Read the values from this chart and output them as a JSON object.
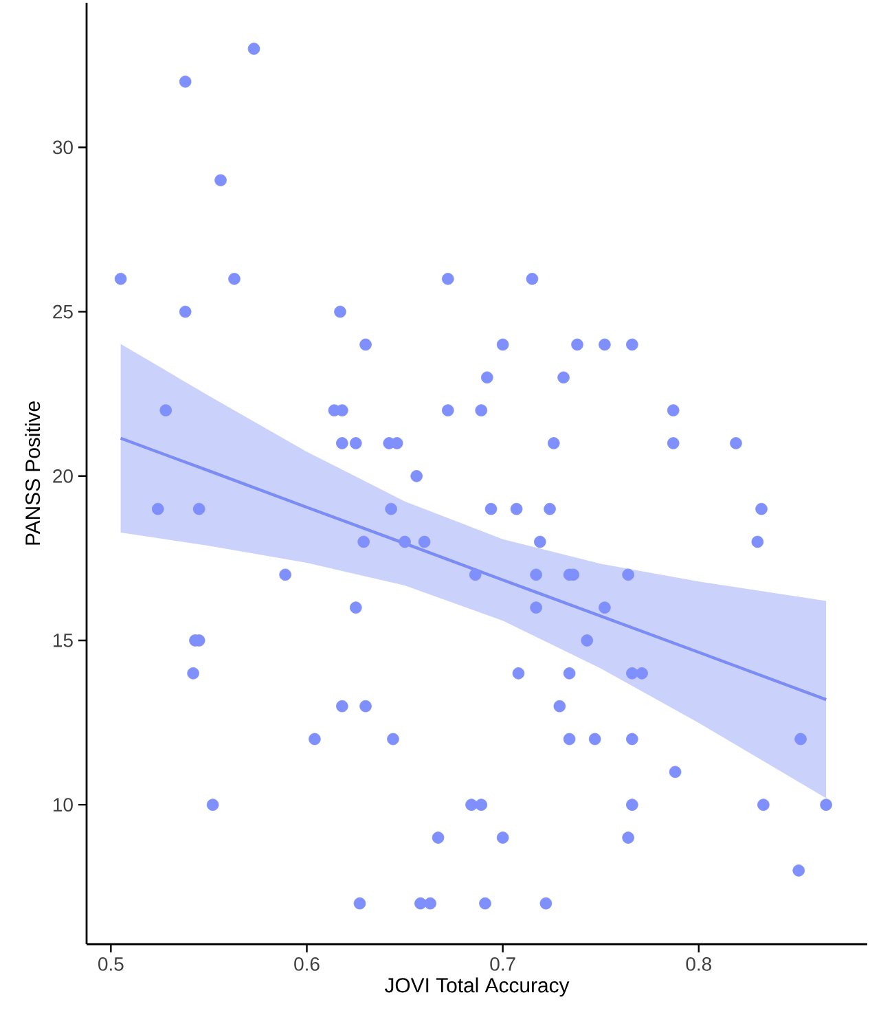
{
  "chart_data": {
    "type": "scatter",
    "xlabel": "JOVI Total Accuracy",
    "ylabel": "PANSS Positive",
    "xlim": [
      0.4876,
      0.886
    ],
    "ylim": [
      5.76,
      34.4
    ],
    "xticks": [
      0.5,
      0.6,
      0.7,
      0.8
    ],
    "yticks": [
      10,
      15,
      20,
      25,
      30
    ],
    "series": [
      {
        "color": "#7f8ffb",
        "marker": "circle",
        "x": [
          0.573,
          0.538,
          0.556,
          0.505,
          0.563,
          0.672,
          0.715,
          0.538,
          0.617,
          0.63,
          0.7,
          0.738,
          0.752,
          0.766,
          0.692,
          0.731,
          0.528,
          0.614,
          0.618,
          0.672,
          0.689,
          0.787,
          0.618,
          0.625,
          0.642,
          0.646,
          0.726,
          0.787,
          0.819,
          0.656,
          0.524,
          0.545,
          0.643,
          0.694,
          0.707,
          0.724,
          0.832,
          0.629,
          0.65,
          0.66,
          0.719,
          0.83,
          0.589,
          0.686,
          0.717,
          0.734,
          0.736,
          0.764,
          0.625,
          0.717,
          0.752,
          0.543,
          0.545,
          0.743,
          0.542,
          0.708,
          0.734,
          0.766,
          0.771,
          0.618,
          0.63,
          0.729,
          0.604,
          0.644,
          0.734,
          0.747,
          0.766,
          0.852,
          0.788,
          0.552,
          0.684,
          0.689,
          0.766,
          0.833,
          0.865,
          0.667,
          0.7,
          0.764,
          0.851,
          0.627,
          0.658,
          0.663,
          0.691,
          0.722
        ],
        "values": [
          33,
          32,
          29,
          26,
          26,
          26,
          26,
          25,
          25,
          24,
          24,
          24,
          24,
          24,
          23,
          23,
          22,
          22,
          22,
          22,
          22,
          22,
          21,
          21,
          21,
          21,
          21,
          21,
          21,
          20,
          19,
          19,
          19,
          19,
          19,
          19,
          19,
          18,
          18,
          18,
          18,
          18,
          17,
          17,
          17,
          17,
          17,
          17,
          16,
          16,
          16,
          15,
          15,
          15,
          14,
          14,
          14,
          14,
          14,
          13,
          13,
          13,
          12,
          12,
          12,
          12,
          12,
          12,
          11,
          10,
          10,
          10,
          10,
          10,
          10,
          9,
          9,
          9,
          8,
          7,
          7,
          7,
          7,
          7
        ]
      },
      {
        "type": "line",
        "color": "#7b8cf5",
        "marker": "none",
        "x": [
          0.505,
          0.55,
          0.6,
          0.65,
          0.7,
          0.75,
          0.8,
          0.865
        ],
        "values": [
          21.15,
          20.16,
          19.05,
          17.95,
          16.84,
          15.74,
          14.64,
          13.2
        ],
        "lower": [
          18.28,
          17.88,
          17.36,
          16.67,
          15.6,
          14.15,
          12.49,
          10.2
        ],
        "upper": [
          24.02,
          22.44,
          20.74,
          19.23,
          18.08,
          17.33,
          16.79,
          16.2
        ]
      }
    ]
  }
}
